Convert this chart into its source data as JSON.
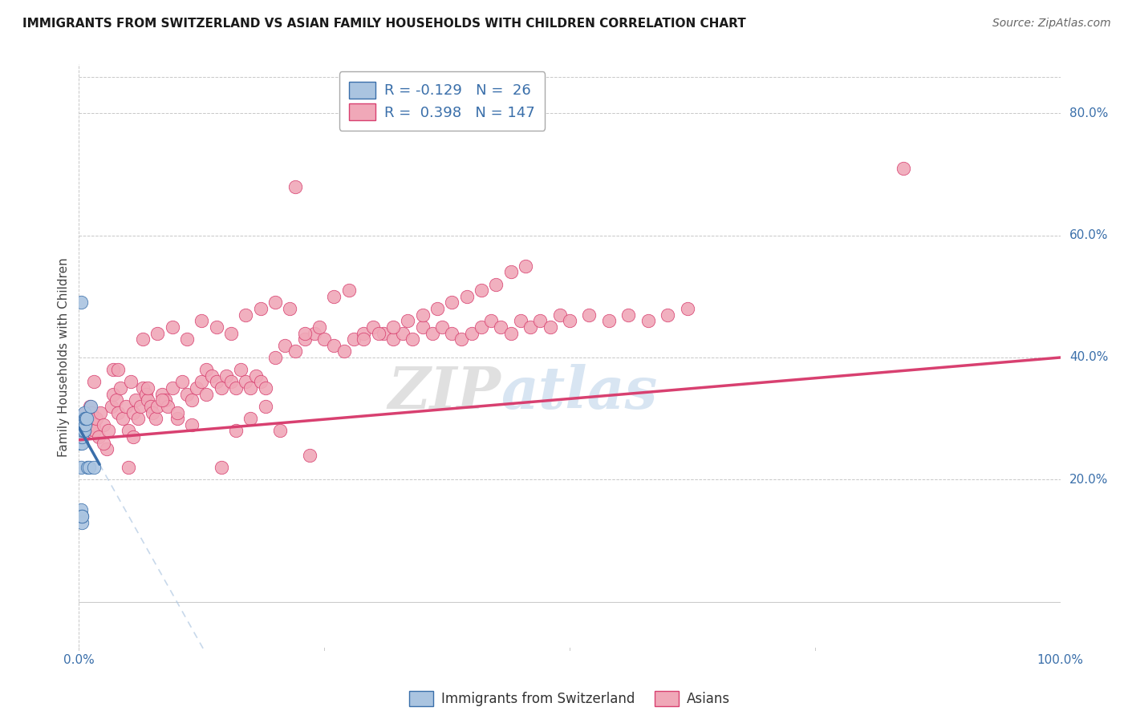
{
  "title": "IMMIGRANTS FROM SWITZERLAND VS ASIAN FAMILY HOUSEHOLDS WITH CHILDREN CORRELATION CHART",
  "source": "Source: ZipAtlas.com",
  "ylabel": "Family Households with Children",
  "legend_label1": "Immigrants from Switzerland",
  "legend_label2": "Asians",
  "r1": -0.129,
  "n1": 26,
  "r2": 0.398,
  "n2": 147,
  "color_blue_fill": "#aac4e0",
  "color_pink_fill": "#f0a8b8",
  "color_blue_line": "#3a6faa",
  "color_pink_line": "#d84070",
  "color_blue_dash": "#aac4e0",
  "background": "#ffffff",
  "grid_color": "#c8c8c8",
  "watermark_zip": "ZIP",
  "watermark_atlas": "atlas",
  "ytick_labels": [
    "20.0%",
    "40.0%",
    "60.0%",
    "80.0%"
  ],
  "ytick_values": [
    0.2,
    0.4,
    0.6,
    0.8
  ],
  "blue_points_x": [
    0.001,
    0.001,
    0.001,
    0.002,
    0.002,
    0.002,
    0.002,
    0.003,
    0.003,
    0.003,
    0.003,
    0.004,
    0.004,
    0.004,
    0.005,
    0.005,
    0.006,
    0.006,
    0.007,
    0.008,
    0.009,
    0.01,
    0.012,
    0.015,
    0.002,
    0.003
  ],
  "blue_points_y": [
    0.26,
    0.27,
    0.28,
    0.14,
    0.15,
    0.22,
    0.28,
    0.13,
    0.14,
    0.26,
    0.27,
    0.28,
    0.29,
    0.3,
    0.28,
    0.31,
    0.29,
    0.3,
    0.3,
    0.3,
    0.22,
    0.22,
    0.32,
    0.22,
    0.49,
    0.14
  ],
  "pink_points_x": [
    0.002,
    0.003,
    0.004,
    0.005,
    0.006,
    0.007,
    0.008,
    0.009,
    0.01,
    0.011,
    0.012,
    0.013,
    0.015,
    0.016,
    0.018,
    0.02,
    0.022,
    0.025,
    0.028,
    0.03,
    0.033,
    0.035,
    0.038,
    0.04,
    0.042,
    0.045,
    0.048,
    0.05,
    0.053,
    0.055,
    0.058,
    0.06,
    0.063,
    0.065,
    0.068,
    0.07,
    0.073,
    0.075,
    0.078,
    0.08,
    0.085,
    0.088,
    0.09,
    0.095,
    0.1,
    0.105,
    0.11,
    0.115,
    0.12,
    0.125,
    0.13,
    0.135,
    0.14,
    0.145,
    0.15,
    0.155,
    0.16,
    0.165,
    0.17,
    0.175,
    0.18,
    0.185,
    0.19,
    0.2,
    0.21,
    0.22,
    0.23,
    0.24,
    0.25,
    0.26,
    0.27,
    0.28,
    0.29,
    0.3,
    0.31,
    0.32,
    0.33,
    0.34,
    0.35,
    0.36,
    0.37,
    0.38,
    0.39,
    0.4,
    0.41,
    0.42,
    0.43,
    0.44,
    0.45,
    0.46,
    0.47,
    0.48,
    0.49,
    0.5,
    0.52,
    0.54,
    0.56,
    0.58,
    0.6,
    0.62,
    0.035,
    0.05,
    0.065,
    0.08,
    0.095,
    0.11,
    0.125,
    0.14,
    0.155,
    0.17,
    0.185,
    0.2,
    0.215,
    0.23,
    0.245,
    0.26,
    0.275,
    0.29,
    0.305,
    0.32,
    0.335,
    0.35,
    0.365,
    0.38,
    0.395,
    0.41,
    0.425,
    0.44,
    0.455,
    0.005,
    0.015,
    0.025,
    0.04,
    0.055,
    0.07,
    0.085,
    0.1,
    0.115,
    0.13,
    0.145,
    0.16,
    0.175,
    0.19,
    0.205,
    0.22,
    0.235,
    0.84
  ],
  "pink_points_y": [
    0.27,
    0.29,
    0.28,
    0.3,
    0.29,
    0.31,
    0.3,
    0.28,
    0.29,
    0.32,
    0.3,
    0.31,
    0.29,
    0.28,
    0.3,
    0.27,
    0.31,
    0.29,
    0.25,
    0.28,
    0.32,
    0.34,
    0.33,
    0.31,
    0.35,
    0.3,
    0.32,
    0.28,
    0.36,
    0.31,
    0.33,
    0.3,
    0.32,
    0.35,
    0.34,
    0.33,
    0.32,
    0.31,
    0.3,
    0.32,
    0.34,
    0.33,
    0.32,
    0.35,
    0.3,
    0.36,
    0.34,
    0.33,
    0.35,
    0.36,
    0.38,
    0.37,
    0.36,
    0.35,
    0.37,
    0.36,
    0.35,
    0.38,
    0.36,
    0.35,
    0.37,
    0.36,
    0.35,
    0.4,
    0.42,
    0.41,
    0.43,
    0.44,
    0.43,
    0.42,
    0.41,
    0.43,
    0.44,
    0.45,
    0.44,
    0.43,
    0.44,
    0.43,
    0.45,
    0.44,
    0.45,
    0.44,
    0.43,
    0.44,
    0.45,
    0.46,
    0.45,
    0.44,
    0.46,
    0.45,
    0.46,
    0.45,
    0.47,
    0.46,
    0.47,
    0.46,
    0.47,
    0.46,
    0.47,
    0.48,
    0.38,
    0.22,
    0.43,
    0.44,
    0.45,
    0.43,
    0.46,
    0.45,
    0.44,
    0.47,
    0.48,
    0.49,
    0.48,
    0.44,
    0.45,
    0.5,
    0.51,
    0.43,
    0.44,
    0.45,
    0.46,
    0.47,
    0.48,
    0.49,
    0.5,
    0.51,
    0.52,
    0.54,
    0.55,
    0.28,
    0.36,
    0.26,
    0.38,
    0.27,
    0.35,
    0.33,
    0.31,
    0.29,
    0.34,
    0.22,
    0.28,
    0.3,
    0.32,
    0.28,
    0.68,
    0.24,
    0.71
  ],
  "xlim": [
    0.0,
    1.0
  ],
  "ylim": [
    -0.08,
    0.88
  ],
  "plot_xlim": [
    0.0,
    1.0
  ],
  "blue_line_x0": 0.0,
  "blue_line_y0": 0.285,
  "blue_line_x1": 0.021,
  "blue_line_y1": 0.225,
  "pink_line_x0": 0.0,
  "pink_line_y0": 0.265,
  "pink_line_x1": 1.0,
  "pink_line_y1": 0.4,
  "title_fontsize": 11,
  "source_fontsize": 10,
  "tick_fontsize": 11,
  "ylabel_fontsize": 11,
  "legend_fontsize": 13
}
